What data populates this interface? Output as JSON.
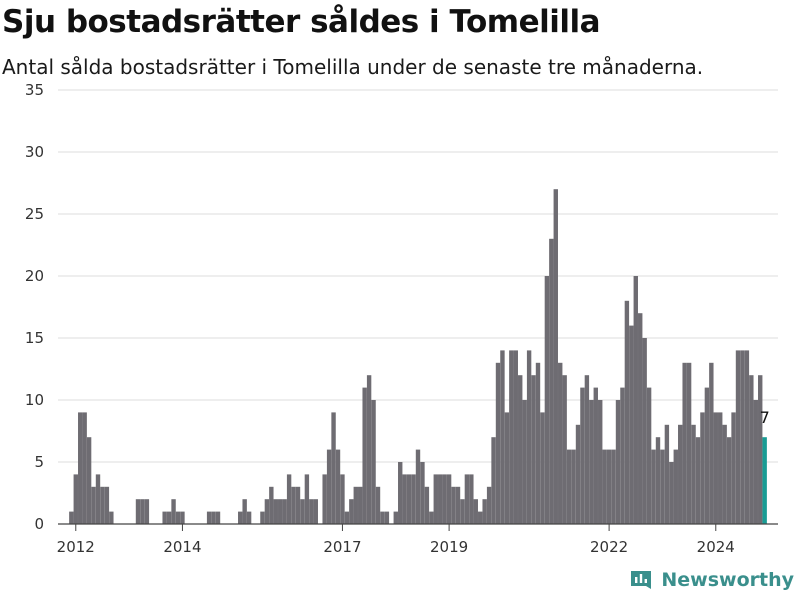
{
  "header": {
    "title": "Sju bostadsrätter såldes i Tomelilla",
    "subtitle": "Antal sålda bostadsrätter i Tomelilla under de senaste tre månaderna."
  },
  "brand": {
    "name": "Newsworthy",
    "icon": "newsworthy-logo-icon",
    "color": "#3a8f8c"
  },
  "chart_data": {
    "type": "bar",
    "x_start": "2011-09",
    "x_end": "2025-03",
    "ylim": [
      0,
      35
    ],
    "yticks": [
      0,
      5,
      10,
      15,
      20,
      25,
      30,
      35
    ],
    "xticks": [
      {
        "label": "2012",
        "date": "2012-01"
      },
      {
        "label": "2014",
        "date": "2014-01"
      },
      {
        "label": "2017",
        "date": "2017-01"
      },
      {
        "label": "2019",
        "date": "2019-01"
      },
      {
        "label": "2022",
        "date": "2022-01"
      },
      {
        "label": "2024",
        "date": "2024-01"
      }
    ],
    "grid": true,
    "bar_color": "#6e6c72",
    "highlight_color": "#199c94",
    "highlight_label": "7",
    "series": [
      {
        "values": [
          {
            "x": "2011-12",
            "y": 1
          },
          {
            "x": "2012-01",
            "y": 4
          },
          {
            "x": "2012-02",
            "y": 9
          },
          {
            "x": "2012-03",
            "y": 9
          },
          {
            "x": "2012-04",
            "y": 7
          },
          {
            "x": "2012-05",
            "y": 3
          },
          {
            "x": "2012-06",
            "y": 4
          },
          {
            "x": "2012-07",
            "y": 3
          },
          {
            "x": "2012-08",
            "y": 3
          },
          {
            "x": "2012-09",
            "y": 1
          },
          {
            "x": "2013-03",
            "y": 2
          },
          {
            "x": "2013-04",
            "y": 2
          },
          {
            "x": "2013-05",
            "y": 2
          },
          {
            "x": "2013-09",
            "y": 1
          },
          {
            "x": "2013-10",
            "y": 1
          },
          {
            "x": "2013-11",
            "y": 2
          },
          {
            "x": "2013-12",
            "y": 1
          },
          {
            "x": "2014-01",
            "y": 1
          },
          {
            "x": "2014-07",
            "y": 1
          },
          {
            "x": "2014-08",
            "y": 1
          },
          {
            "x": "2014-09",
            "y": 1
          },
          {
            "x": "2015-02",
            "y": 1
          },
          {
            "x": "2015-03",
            "y": 2
          },
          {
            "x": "2015-04",
            "y": 1
          },
          {
            "x": "2015-07",
            "y": 1
          },
          {
            "x": "2015-08",
            "y": 2
          },
          {
            "x": "2015-09",
            "y": 3
          },
          {
            "x": "2015-10",
            "y": 2
          },
          {
            "x": "2015-11",
            "y": 2
          },
          {
            "x": "2015-12",
            "y": 2
          },
          {
            "x": "2016-01",
            "y": 4
          },
          {
            "x": "2016-02",
            "y": 3
          },
          {
            "x": "2016-03",
            "y": 3
          },
          {
            "x": "2016-04",
            "y": 2
          },
          {
            "x": "2016-05",
            "y": 4
          },
          {
            "x": "2016-06",
            "y": 2
          },
          {
            "x": "2016-07",
            "y": 2
          },
          {
            "x": "2016-09",
            "y": 4
          },
          {
            "x": "2016-10",
            "y": 6
          },
          {
            "x": "2016-11",
            "y": 9
          },
          {
            "x": "2016-12",
            "y": 6
          },
          {
            "x": "2017-01",
            "y": 4
          },
          {
            "x": "2017-02",
            "y": 1
          },
          {
            "x": "2017-03",
            "y": 2
          },
          {
            "x": "2017-04",
            "y": 3
          },
          {
            "x": "2017-05",
            "y": 3
          },
          {
            "x": "2017-06",
            "y": 11
          },
          {
            "x": "2017-07",
            "y": 12
          },
          {
            "x": "2017-08",
            "y": 10
          },
          {
            "x": "2017-09",
            "y": 3
          },
          {
            "x": "2017-10",
            "y": 1
          },
          {
            "x": "2017-11",
            "y": 1
          },
          {
            "x": "2018-01",
            "y": 1
          },
          {
            "x": "2018-02",
            "y": 5
          },
          {
            "x": "2018-03",
            "y": 4
          },
          {
            "x": "2018-04",
            "y": 4
          },
          {
            "x": "2018-05",
            "y": 4
          },
          {
            "x": "2018-06",
            "y": 6
          },
          {
            "x": "2018-07",
            "y": 5
          },
          {
            "x": "2018-08",
            "y": 3
          },
          {
            "x": "2018-09",
            "y": 1
          },
          {
            "x": "2018-10",
            "y": 4
          },
          {
            "x": "2018-11",
            "y": 4
          },
          {
            "x": "2018-12",
            "y": 4
          },
          {
            "x": "2019-01",
            "y": 4
          },
          {
            "x": "2019-02",
            "y": 3
          },
          {
            "x": "2019-03",
            "y": 3
          },
          {
            "x": "2019-04",
            "y": 2
          },
          {
            "x": "2019-05",
            "y": 4
          },
          {
            "x": "2019-06",
            "y": 4
          },
          {
            "x": "2019-07",
            "y": 2
          },
          {
            "x": "2019-08",
            "y": 1
          },
          {
            "x": "2019-09",
            "y": 2
          },
          {
            "x": "2019-10",
            "y": 3
          },
          {
            "x": "2019-11",
            "y": 7
          },
          {
            "x": "2019-12",
            "y": 13
          },
          {
            "x": "2020-01",
            "y": 14
          },
          {
            "x": "2020-02",
            "y": 9
          },
          {
            "x": "2020-03",
            "y": 14
          },
          {
            "x": "2020-04",
            "y": 14
          },
          {
            "x": "2020-05",
            "y": 12
          },
          {
            "x": "2020-06",
            "y": 10
          },
          {
            "x": "2020-07",
            "y": 14
          },
          {
            "x": "2020-08",
            "y": 12
          },
          {
            "x": "2020-09",
            "y": 13
          },
          {
            "x": "2020-10",
            "y": 9
          },
          {
            "x": "2020-11",
            "y": 20
          },
          {
            "x": "2020-12",
            "y": 23
          },
          {
            "x": "2021-01",
            "y": 27
          },
          {
            "x": "2021-02",
            "y": 13
          },
          {
            "x": "2021-03",
            "y": 12
          },
          {
            "x": "2021-04",
            "y": 6
          },
          {
            "x": "2021-05",
            "y": 6
          },
          {
            "x": "2021-06",
            "y": 8
          },
          {
            "x": "2021-07",
            "y": 11
          },
          {
            "x": "2021-08",
            "y": 12
          },
          {
            "x": "2021-09",
            "y": 10
          },
          {
            "x": "2021-10",
            "y": 11
          },
          {
            "x": "2021-11",
            "y": 10
          },
          {
            "x": "2021-12",
            "y": 6
          },
          {
            "x": "2022-01",
            "y": 6
          },
          {
            "x": "2022-02",
            "y": 6
          },
          {
            "x": "2022-03",
            "y": 10
          },
          {
            "x": "2022-04",
            "y": 11
          },
          {
            "x": "2022-05",
            "y": 18
          },
          {
            "x": "2022-06",
            "y": 16
          },
          {
            "x": "2022-07",
            "y": 20
          },
          {
            "x": "2022-08",
            "y": 17
          },
          {
            "x": "2022-09",
            "y": 15
          },
          {
            "x": "2022-10",
            "y": 11
          },
          {
            "x": "2022-11",
            "y": 6
          },
          {
            "x": "2022-12",
            "y": 7
          },
          {
            "x": "2023-01",
            "y": 6
          },
          {
            "x": "2023-02",
            "y": 8
          },
          {
            "x": "2023-03",
            "y": 5
          },
          {
            "x": "2023-04",
            "y": 6
          },
          {
            "x": "2023-05",
            "y": 8
          },
          {
            "x": "2023-06",
            "y": 13
          },
          {
            "x": "2023-07",
            "y": 13
          },
          {
            "x": "2023-08",
            "y": 8
          },
          {
            "x": "2023-09",
            "y": 7
          },
          {
            "x": "2023-10",
            "y": 9
          },
          {
            "x": "2023-11",
            "y": 11
          },
          {
            "x": "2023-12",
            "y": 13
          },
          {
            "x": "2024-01",
            "y": 9
          },
          {
            "x": "2024-02",
            "y": 9
          },
          {
            "x": "2024-03",
            "y": 8
          },
          {
            "x": "2024-04",
            "y": 7
          },
          {
            "x": "2024-05",
            "y": 9
          },
          {
            "x": "2024-06",
            "y": 14
          },
          {
            "x": "2024-07",
            "y": 14
          },
          {
            "x": "2024-08",
            "y": 14
          },
          {
            "x": "2024-09",
            "y": 12
          },
          {
            "x": "2024-10",
            "y": 10
          },
          {
            "x": "2024-11",
            "y": 12
          },
          {
            "x": "2024-12",
            "y": 7
          }
        ]
      }
    ]
  }
}
